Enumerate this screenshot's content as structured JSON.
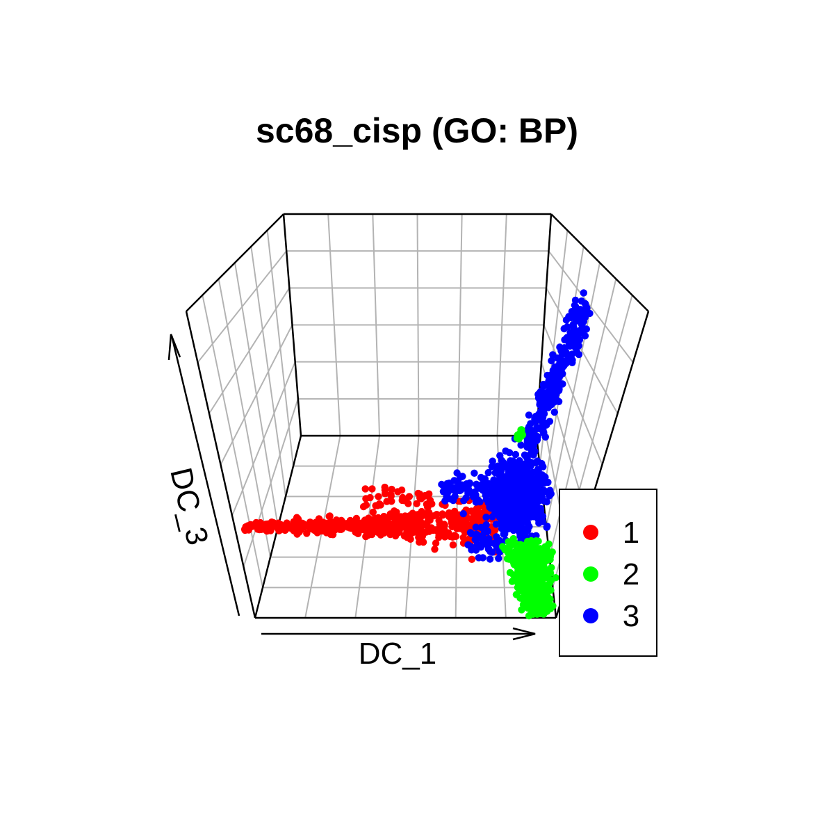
{
  "chart_data": {
    "type": "scatter",
    "title": "sc68_cisp (GO: BP)",
    "xlabel": "DC_1",
    "ylabel": "DC_3",
    "grid": true,
    "legend_position": "bottom-right",
    "series": [
      {
        "name": "1",
        "color": "#ff0000"
      },
      {
        "name": "2",
        "color": "#00ff00"
      },
      {
        "name": "3",
        "color": "#0000ff"
      }
    ]
  }
}
